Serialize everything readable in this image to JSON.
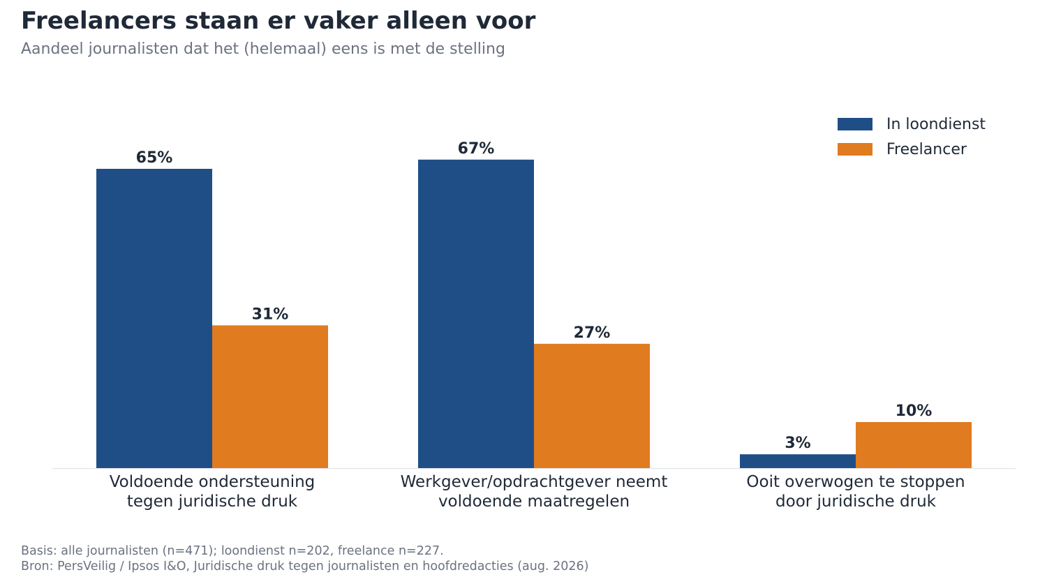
{
  "header": {
    "title": "Freelancers staan er vaker alleen voor",
    "subtitle": "Aandeel journalisten dat het (helemaal) eens is met de stelling"
  },
  "footer": {
    "basis": "Basis: alle journalisten (n=471); loondienst n=202, freelance n=227.",
    "source": "Bron: PersVeilig / Ipsos I&O, Juridische druk tegen journalisten en hoofdredacties (aug. 2026)"
  },
  "chart_data": {
    "type": "bar",
    "categories": [
      [
        "Voldoende ondersteuning",
        "tegen juridische druk"
      ],
      [
        "Werkgever/opdrachtgever neemt",
        "voldoende maatregelen"
      ],
      [
        "Ooit overwogen te stoppen",
        "door juridische druk"
      ]
    ],
    "series": [
      {
        "name": "In loondienst",
        "color": "#1f4e87",
        "values": [
          65,
          67,
          3
        ],
        "labels": [
          "65%",
          "67%",
          "3%"
        ]
      },
      {
        "name": "Freelancer",
        "color": "#e07b20",
        "values": [
          31,
          27,
          10
        ],
        "labels": [
          "31%",
          "27%",
          "10%"
        ]
      }
    ],
    "ylim": [
      0,
      80
    ],
    "grid": false,
    "legend_position": "top-right"
  }
}
